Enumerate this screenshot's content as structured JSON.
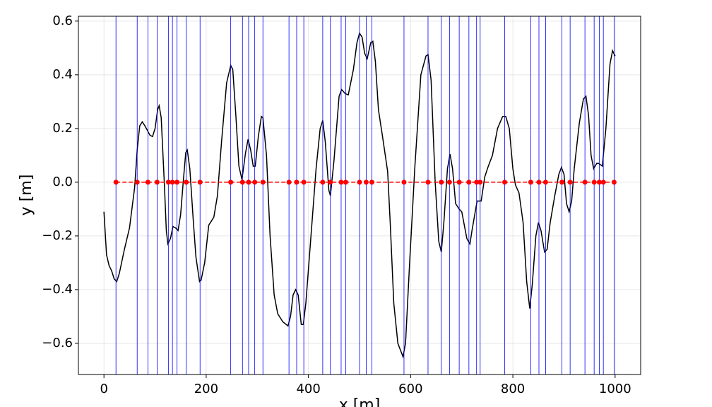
{
  "chart_data": {
    "type": "line",
    "xlabel": "x [m]",
    "ylabel": "y [m]",
    "xlim": [
      -50,
      1050
    ],
    "ylim": [
      -0.716,
      0.618
    ],
    "xticks": [
      0,
      200,
      400,
      600,
      800,
      1000
    ],
    "yticks": [
      {
        "value": -0.6,
        "label": "−0.6"
      },
      {
        "value": -0.4,
        "label": "−0.4"
      },
      {
        "value": -0.2,
        "label": "−0.2"
      },
      {
        "value": 0,
        "label": "0.0"
      },
      0.2,
      0.4,
      0.6
    ],
    "grid": true,
    "series": [
      {
        "color": "#000000",
        "x": [
          0,
          5,
          10,
          15,
          20,
          25,
          30,
          40,
          50,
          60,
          65,
          70,
          75,
          80,
          90,
          95,
          100,
          105,
          108,
          112,
          118,
          122,
          125,
          130,
          135,
          140,
          145,
          150,
          155,
          160,
          163,
          168,
          175,
          180,
          187,
          190,
          197,
          205,
          215,
          222,
          230,
          240,
          248,
          252,
          258,
          264,
          270,
          277,
          282,
          287,
          292,
          296,
          302,
          308,
          311,
          318,
          325,
          333,
          340,
          350,
          360,
          365,
          370,
          375,
          380,
          386,
          390,
          395,
          405,
          415,
          423,
          428,
          433,
          440,
          443,
          450,
          460,
          465,
          472,
          478,
          488,
          495,
          500,
          505,
          510,
          515,
          522,
          526,
          531,
          537,
          545,
          555,
          560,
          567,
          575,
          585,
          590,
          598,
          608,
          620,
          630,
          634,
          640,
          648,
          655,
          660,
          665,
          672,
          677,
          682,
          688,
          695,
          700,
          710,
          716,
          720,
          730,
          738,
          745,
          752,
          760,
          770,
          780,
          786,
          793,
          800,
          805,
          812,
          820,
          827,
          833,
          838,
          845,
          850,
          855,
          862,
          867,
          873,
          882,
          890,
          895,
          900,
          905,
          910,
          915,
          920,
          930,
          938,
          943,
          948,
          953,
          958,
          964,
          968,
          975,
          982,
          990,
          995,
          1000
        ],
        "values": [
          -0.11,
          -0.27,
          -0.31,
          -0.33,
          -0.36,
          -0.37,
          -0.34,
          -0.25,
          -0.17,
          -0.02,
          0.12,
          0.21,
          0.225,
          0.21,
          0.175,
          0.17,
          0.2,
          0.27,
          0.285,
          0.24,
          0.0,
          -0.18,
          -0.23,
          -0.21,
          -0.165,
          -0.17,
          -0.18,
          -0.12,
          0.0,
          0.11,
          0.12,
          0.05,
          -0.15,
          -0.28,
          -0.37,
          -0.365,
          -0.3,
          -0.16,
          -0.13,
          -0.05,
          0.15,
          0.37,
          0.435,
          0.42,
          0.25,
          0.06,
          0.01,
          0.11,
          0.16,
          0.12,
          0.06,
          0.06,
          0.17,
          0.245,
          0.24,
          0.1,
          -0.2,
          -0.42,
          -0.49,
          -0.52,
          -0.535,
          -0.5,
          -0.42,
          -0.4,
          -0.42,
          -0.53,
          -0.53,
          -0.45,
          -0.2,
          0.05,
          0.2,
          0.23,
          0.15,
          -0.03,
          -0.05,
          0.08,
          0.32,
          0.345,
          0.33,
          0.325,
          0.42,
          0.52,
          0.555,
          0.54,
          0.48,
          0.46,
          0.52,
          0.525,
          0.45,
          0.27,
          0.17,
          0.04,
          -0.15,
          -0.45,
          -0.6,
          -0.65,
          -0.6,
          -0.3,
          0.05,
          0.4,
          0.47,
          0.475,
          0.38,
          0.0,
          -0.22,
          -0.26,
          -0.15,
          0.05,
          0.105,
          0.05,
          -0.08,
          -0.1,
          -0.11,
          -0.21,
          -0.23,
          -0.18,
          -0.07,
          -0.07,
          0.02,
          0.06,
          0.1,
          0.2,
          0.245,
          0.245,
          0.2,
          0.05,
          -0.01,
          -0.04,
          -0.15,
          -0.37,
          -0.47,
          -0.38,
          -0.2,
          -0.15,
          -0.18,
          -0.26,
          -0.25,
          -0.15,
          -0.05,
          0.03,
          0.055,
          0.03,
          -0.08,
          -0.11,
          -0.07,
          0.05,
          0.22,
          0.31,
          0.32,
          0.25,
          0.1,
          0.05,
          0.07,
          0.07,
          0.06,
          0.2,
          0.44,
          0.49,
          0.47
        ]
      },
      {
        "color": "#ff0000",
        "marker_line_color": "#0000ff",
        "dashed": true,
        "x": [
          23.5,
          65,
          86,
          104,
          126,
          134,
          143,
          161,
          188,
          248,
          271,
          283,
          295,
          311,
          362,
          377,
          391,
          428,
          443,
          464,
          473,
          500,
          513,
          524,
          587,
          634,
          660,
          676,
          695,
          714,
          729,
          736,
          784,
          835,
          851,
          864,
          896,
          912,
          941,
          959,
          969,
          977,
          998
        ],
        "values": [
          0,
          0,
          0,
          0,
          0,
          0,
          0,
          0,
          0,
          0,
          0,
          0,
          0,
          0,
          0,
          0,
          0,
          0,
          0,
          0,
          0,
          0,
          0,
          0,
          0,
          0,
          0,
          0,
          0,
          0,
          0,
          0,
          0,
          0,
          0,
          0,
          0,
          0,
          0,
          0,
          0,
          0,
          0
        ]
      }
    ]
  }
}
